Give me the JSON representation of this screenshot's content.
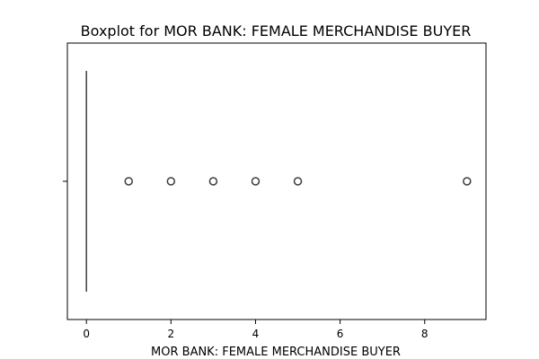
{
  "chart_data": {
    "type": "box",
    "orientation": "horizontal",
    "title": "Boxplot for MOR BANK: FEMALE MERCHANDISE BUYER",
    "xlabel": "MOR BANK: FEMALE MERCHANDISE BUYER",
    "ylabel": "",
    "xlim": [
      -0.45,
      9.45
    ],
    "x_ticks": [
      0,
      2,
      4,
      6,
      8
    ],
    "box": {
      "min": 0,
      "q1": 0,
      "median": 0,
      "q3": 0,
      "max": 0
    },
    "outliers": [
      1,
      2,
      3,
      4,
      5,
      9
    ],
    "grid": false,
    "colors": {
      "box_edge": "#3d3d3d",
      "outlier_edge": "#3d3d3d",
      "axes": "#000000"
    }
  }
}
